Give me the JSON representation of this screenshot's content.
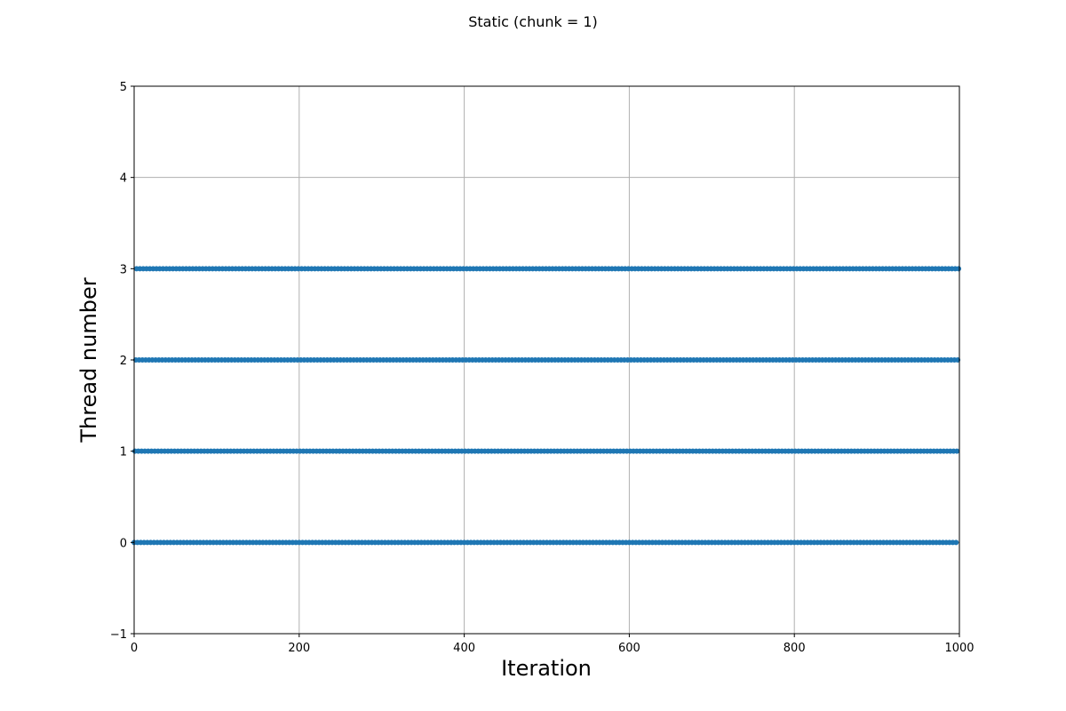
{
  "chart_data": {
    "type": "scatter",
    "title": "Static (chunk = 1)",
    "xlabel": "Iteration",
    "ylabel": "Thread number",
    "xlim": [
      0,
      1000
    ],
    "ylim": [
      -1,
      5
    ],
    "xticks": [
      0,
      200,
      400,
      600,
      800,
      1000
    ],
    "yticks": [
      -1,
      0,
      1,
      2,
      3,
      4,
      5
    ],
    "xtick_labels": [
      "0",
      "200",
      "400",
      "600",
      "800",
      "1000"
    ],
    "ytick_labels": [
      "−1",
      "0",
      "1",
      "2",
      "3",
      "4",
      "5"
    ],
    "grid": true,
    "marker_color": "#1f77b4",
    "iterations": 1000,
    "threads": [
      0,
      1,
      2,
      3
    ],
    "assignment": "iteration i on thread i mod 4",
    "series": [
      {
        "thread": 0,
        "x_start": 0,
        "x_end": 996,
        "x_step": 4
      },
      {
        "thread": 1,
        "x_start": 1,
        "x_end": 997,
        "x_step": 4
      },
      {
        "thread": 2,
        "x_start": 2,
        "x_end": 998,
        "x_step": 4
      },
      {
        "thread": 3,
        "x_start": 3,
        "x_end": 999,
        "x_step": 4
      }
    ]
  }
}
